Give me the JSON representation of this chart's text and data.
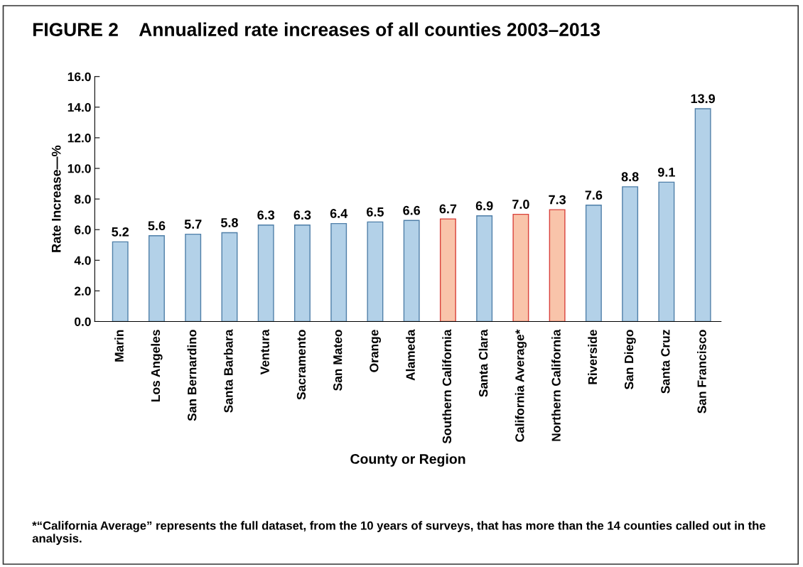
{
  "chart_data": {
    "type": "bar",
    "title": "FIGURE 2    Annualized rate increases of all counties 2003–2013",
    "xlabel": "County or Region",
    "ylabel": "Rate Increase—%",
    "categories": [
      "Marin",
      "Los Angeles",
      "San Bernardino",
      "Santa Barbara",
      "Ventura",
      "Sacramento",
      "San Mateo",
      "Orange",
      "Alameda",
      "Southern California",
      "Santa Clara",
      "California Average*",
      "Northern California",
      "Riverside",
      "San Diego",
      "Santa Cruz",
      "San Francisco"
    ],
    "values": [
      5.2,
      5.6,
      5.7,
      5.8,
      6.3,
      6.3,
      6.4,
      6.5,
      6.6,
      6.7,
      6.9,
      7.0,
      7.3,
      7.6,
      8.8,
      9.1,
      13.9
    ],
    "colors": [
      "#b3d1e8",
      "#b3d1e8",
      "#b3d1e8",
      "#b3d1e8",
      "#b3d1e8",
      "#b3d1e8",
      "#b3d1e8",
      "#b3d1e8",
      "#b3d1e8",
      "#f9c4aa",
      "#b3d1e8",
      "#f9c4aa",
      "#f9c4aa",
      "#b3d1e8",
      "#b3d1e8",
      "#b3d1e8",
      "#b3d1e8"
    ],
    "ylim": [
      0,
      16
    ],
    "yticks": [
      {
        "value": 0,
        "label": "0.0"
      },
      {
        "value": 2,
        "label": "2.0"
      },
      {
        "value": 4,
        "label": "4.0"
      },
      {
        "value": 6,
        "label": "6.0"
      },
      {
        "value": 8,
        "label": "8.0"
      },
      {
        "value": 10,
        "label": "10.0"
      },
      {
        "value": 12,
        "label": "12.0"
      },
      {
        "value": 14,
        "label": "14.0"
      },
      {
        "value": 16,
        "label": "16.0"
      }
    ],
    "value_labels": [
      "5.2",
      "5.6",
      "5.7",
      "5.8",
      "6.3",
      "6.3",
      "6.4",
      "6.5",
      "6.6",
      "6.7",
      "6.9",
      "7.0",
      "7.3",
      "7.6",
      "8.8",
      "9.1",
      "13.9"
    ],
    "grid": false,
    "legend": false,
    "annotations": [
      "*“California Average” represents the full dataset, from the 10 years of surveys, that has more than the 14 counties called out in the analysis."
    ]
  }
}
